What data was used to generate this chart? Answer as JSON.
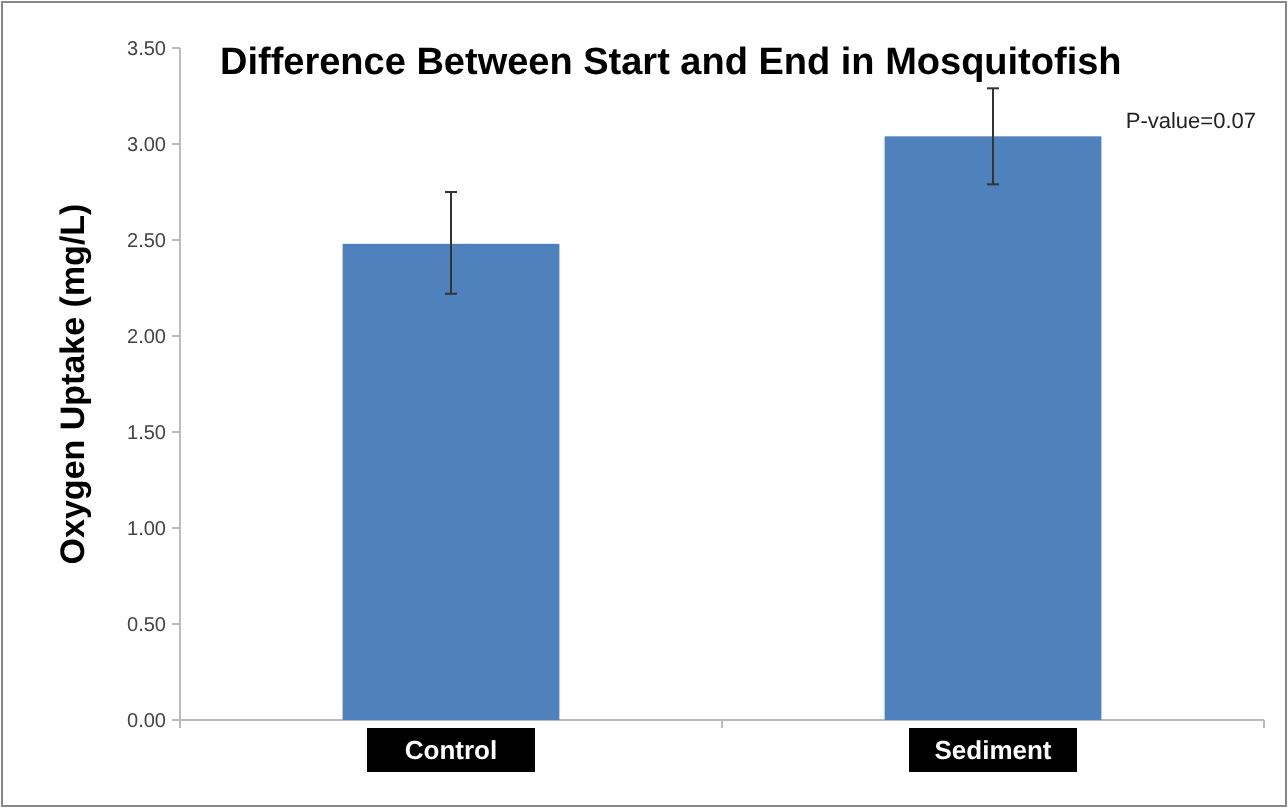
{
  "chart_data": {
    "type": "bar",
    "title": "Difference Between Start and End in Mosquitofish",
    "ylabel": "Oxygen Uptake (mg/L)",
    "categories": [
      "Control",
      "Sediment"
    ],
    "values": [
      2.48,
      3.04
    ],
    "errors": [
      [
        2.22,
        2.75
      ],
      [
        2.79,
        3.29
      ]
    ],
    "color": "#4f81bd",
    "ylim": [
      0,
      3.5
    ],
    "yticks": [
      {
        "value": 0,
        "label": "0.00"
      },
      {
        "value": 0.5,
        "label": "0.50"
      },
      {
        "value": 1,
        "label": "1.00"
      },
      {
        "value": 1.5,
        "label": "1.50"
      },
      {
        "value": 2,
        "label": "2.00"
      },
      {
        "value": 2.5,
        "label": "2.50"
      },
      {
        "value": 3,
        "label": "3.00"
      },
      {
        "value": 3.5,
        "label": "3.50"
      }
    ],
    "annotations": [
      "P-value=0.07"
    ],
    "grid": false
  }
}
